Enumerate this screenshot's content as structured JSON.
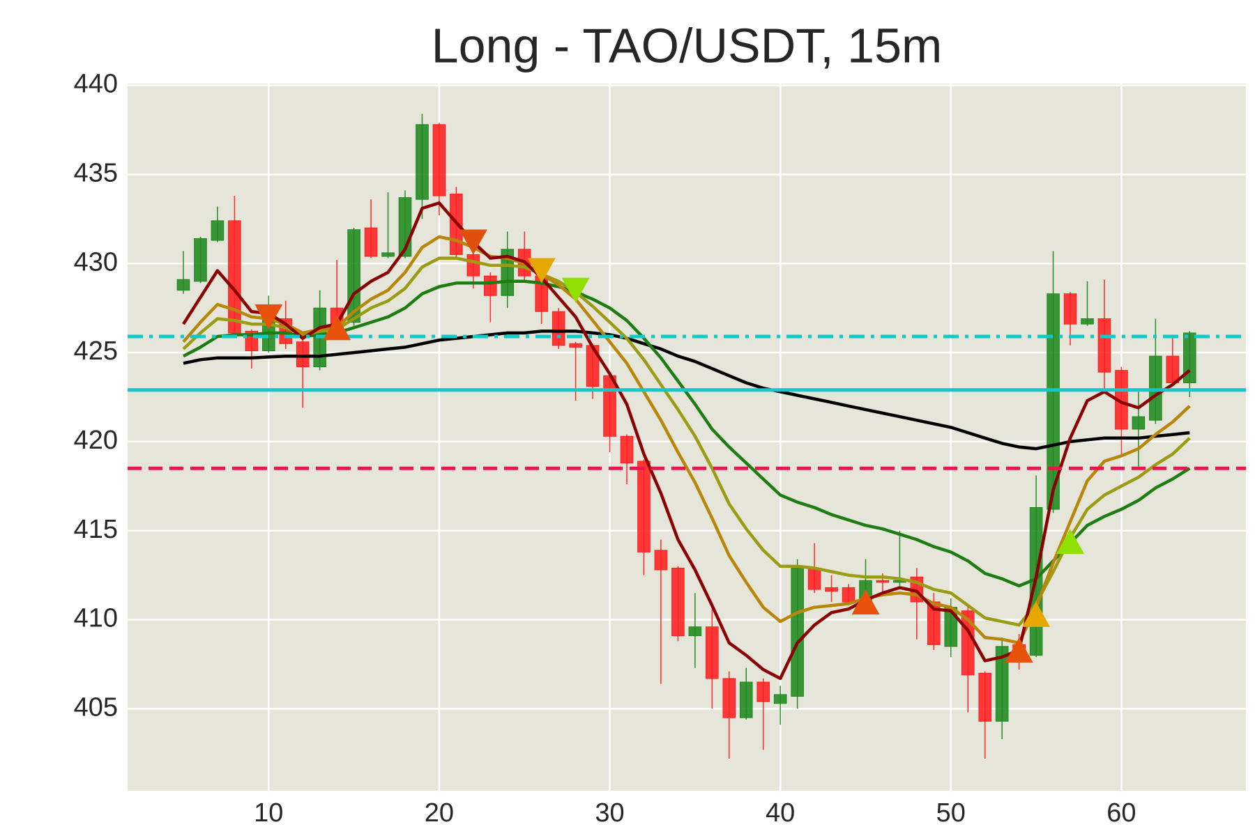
{
  "chart_data": {
    "type": "candlestick",
    "title": "Long - TAO/USDT, 15m",
    "x": [
      5,
      6,
      7,
      8,
      9,
      10,
      11,
      12,
      13,
      14,
      15,
      16,
      17,
      18,
      19,
      20,
      21,
      22,
      23,
      24,
      25,
      26,
      27,
      28,
      29,
      30,
      31,
      32,
      33,
      34,
      35,
      36,
      37,
      38,
      39,
      40,
      41,
      42,
      43,
      44,
      45,
      46,
      47,
      48,
      49,
      50,
      51,
      52,
      53,
      54,
      55,
      56,
      57,
      58,
      59,
      60,
      61,
      62,
      63,
      64
    ],
    "open": [
      428.5,
      429.0,
      431.3,
      432.4,
      426.2,
      425.1,
      426.9,
      425.6,
      424.2,
      427.5,
      426.7,
      432.0,
      430.4,
      430.4,
      433.6,
      437.8,
      433.9,
      430.5,
      429.3,
      428.2,
      430.8,
      429.3,
      427.3,
      425.5,
      425.4,
      423.7,
      420.3,
      418.9,
      413.9,
      412.9,
      409.1,
      409.6,
      406.7,
      404.5,
      406.5,
      405.3,
      405.7,
      412.9,
      411.8,
      411.8,
      411.0,
      412.2,
      412.1,
      412.4,
      411.0,
      408.5,
      410.5,
      407.0,
      404.3,
      408.6,
      408.0,
      416.2,
      428.3,
      426.6,
      426.9,
      424.0,
      420.7,
      421.2,
      424.8,
      423.3
    ],
    "high": [
      430.7,
      431.5,
      433.2,
      433.8,
      426.3,
      428.2,
      427.9,
      426.0,
      428.5,
      430.2,
      432.0,
      433.6,
      434.0,
      434.1,
      438.4,
      437.9,
      434.3,
      430.8,
      429.5,
      431.8,
      431.8,
      429.5,
      427.5,
      425.6,
      425.5,
      423.9,
      420.4,
      419.0,
      414.5,
      413.0,
      411.5,
      410.6,
      407.1,
      407.3,
      406.7,
      406.3,
      413.4,
      414.3,
      412.5,
      412.0,
      413.4,
      412.6,
      415.0,
      412.9,
      411.5,
      411.2,
      410.8,
      407.1,
      409.0,
      409.2,
      418.1,
      430.7,
      428.4,
      429.0,
      429.1,
      424.2,
      422.8,
      426.9,
      425.8,
      426.2
    ],
    "low": [
      428.3,
      428.9,
      431.2,
      426.0,
      424.1,
      425.0,
      425.2,
      421.9,
      424.0,
      426.2,
      426.5,
      430.3,
      430.3,
      430.3,
      432.5,
      432.7,
      430.3,
      428.6,
      426.7,
      427.5,
      429.0,
      426.6,
      425.2,
      422.3,
      422.4,
      419.4,
      417.6,
      412.5,
      406.4,
      408.8,
      407.3,
      405.0,
      402.2,
      404.4,
      402.7,
      404.1,
      405.0,
      411.5,
      411.0,
      410.8,
      410.8,
      411.6,
      411.9,
      408.9,
      408.3,
      407.9,
      404.8,
      402.2,
      403.3,
      407.2,
      407.9,
      416.0,
      425.4,
      426.5,
      422.8,
      419.2,
      418.6,
      421.0,
      423.1,
      422.5
    ],
    "close": [
      429.1,
      431.4,
      432.4,
      426.1,
      425.1,
      427.0,
      425.5,
      424.2,
      427.5,
      426.4,
      431.9,
      430.4,
      430.6,
      433.7,
      437.8,
      433.8,
      430.5,
      429.3,
      428.2,
      430.8,
      429.3,
      427.3,
      425.4,
      425.3,
      423.1,
      420.3,
      418.8,
      413.8,
      412.8,
      409.1,
      409.6,
      406.7,
      404.5,
      406.5,
      405.4,
      405.8,
      412.9,
      411.7,
      411.6,
      411.0,
      412.2,
      412.1,
      412.2,
      411.0,
      408.6,
      410.7,
      406.9,
      404.3,
      408.5,
      408.2,
      416.3,
      428.3,
      426.6,
      426.9,
      423.9,
      420.7,
      421.4,
      424.8,
      423.3,
      426.1
    ],
    "up_color": "#1f8a1f",
    "down_color": "#ff2020",
    "lines": [
      {
        "color": "#000000",
        "values": [
          424.4,
          424.6,
          424.7,
          424.7,
          424.7,
          424.75,
          424.8,
          424.8,
          424.8,
          424.9,
          425.0,
          425.1,
          425.2,
          425.3,
          425.5,
          425.7,
          425.8,
          425.9,
          426.0,
          426.1,
          426.1,
          426.2,
          426.2,
          426.2,
          426.1,
          426.0,
          425.8,
          425.5,
          425.2,
          424.8,
          424.5,
          424.1,
          423.7,
          423.3,
          423.0,
          422.8,
          422.6,
          422.4,
          422.2,
          422.0,
          421.8,
          421.6,
          421.4,
          421.2,
          421.0,
          420.8,
          420.5,
          420.2,
          419.9,
          419.7,
          419.6,
          419.8,
          420.0,
          420.1,
          420.2,
          420.2,
          420.2,
          420.3,
          420.4,
          420.5
        ]
      },
      {
        "color": "#1e7d12",
        "values": [
          424.8,
          425.3,
          425.9,
          426.0,
          426.0,
          426.1,
          426.1,
          425.9,
          426.0,
          426.1,
          426.4,
          426.7,
          427.0,
          427.5,
          428.3,
          428.7,
          428.9,
          428.9,
          428.9,
          429.0,
          429.0,
          428.9,
          428.7,
          428.4,
          428.0,
          427.5,
          426.8,
          425.8,
          424.7,
          423.4,
          422.1,
          420.7,
          419.7,
          418.8,
          417.9,
          417.0,
          416.6,
          416.3,
          415.9,
          415.6,
          415.3,
          415.1,
          414.8,
          414.5,
          414.1,
          413.8,
          413.3,
          412.6,
          412.3,
          411.9,
          412.3,
          413.3,
          414.3,
          415.3,
          415.8,
          416.2,
          416.7,
          417.4,
          417.9,
          418.5
        ]
      },
      {
        "color": "#9c9c14",
        "values": [
          425.2,
          426.1,
          426.9,
          426.8,
          426.6,
          426.6,
          426.4,
          426.0,
          426.2,
          426.3,
          426.9,
          427.5,
          427.9,
          428.6,
          429.8,
          430.3,
          430.3,
          430.1,
          429.9,
          429.9,
          429.8,
          429.4,
          429.0,
          428.4,
          427.6,
          426.7,
          425.8,
          424.6,
          423.2,
          421.8,
          420.3,
          418.5,
          416.5,
          415.1,
          413.9,
          413.0,
          413.0,
          412.9,
          412.7,
          412.5,
          412.4,
          412.4,
          412.3,
          412.1,
          411.7,
          411.5,
          410.8,
          410.1,
          409.9,
          409.7,
          410.9,
          412.7,
          414.6,
          416.2,
          417.0,
          417.5,
          418.0,
          418.7,
          419.3,
          420.2
        ]
      },
      {
        "color": "#b8860b",
        "values": [
          425.6,
          426.7,
          427.7,
          427.4,
          427.0,
          426.9,
          426.6,
          426.1,
          426.3,
          426.4,
          427.3,
          428.0,
          428.5,
          429.5,
          430.9,
          431.5,
          431.3,
          430.9,
          430.4,
          430.3,
          430.0,
          429.4,
          428.8,
          428.0,
          426.8,
          425.6,
          424.4,
          422.8,
          421.2,
          419.4,
          417.7,
          415.7,
          413.6,
          412.1,
          410.7,
          409.9,
          410.4,
          410.7,
          410.8,
          410.9,
          411.2,
          411.4,
          411.5,
          411.4,
          410.9,
          410.7,
          410.0,
          409.0,
          408.9,
          408.7,
          410.7,
          413.2,
          415.5,
          417.8,
          418.9,
          419.2,
          419.6,
          420.4,
          421.1,
          422.0
        ]
      },
      {
        "color": "#8b0000",
        "values": [
          426.6,
          428.1,
          429.6,
          428.5,
          427.3,
          427.2,
          426.6,
          425.8,
          426.4,
          426.6,
          428.3,
          429.0,
          429.5,
          430.8,
          433.1,
          433.4,
          432.3,
          431.2,
          430.3,
          430.4,
          430.1,
          429.2,
          428.1,
          427.0,
          425.3,
          423.8,
          422.1,
          419.3,
          417.1,
          414.5,
          412.8,
          410.8,
          408.7,
          408.0,
          407.2,
          406.7,
          408.7,
          409.7,
          410.4,
          410.6,
          411.1,
          411.5,
          411.8,
          411.6,
          410.6,
          410.5,
          409.4,
          407.7,
          407.9,
          408.3,
          412.4,
          417.3,
          420.2,
          422.3,
          422.8,
          422.2,
          421.9,
          422.6,
          423.2,
          424.0
        ]
      }
    ],
    "hlines": [
      {
        "value": 425.9,
        "color": "#14c8c8",
        "style": "dashdot"
      },
      {
        "value": 422.9,
        "color": "#14c8c8",
        "style": "solid"
      },
      {
        "value": 418.5,
        "color": "#e8174f",
        "style": "dashed"
      }
    ],
    "markers": [
      {
        "x": 10,
        "y": 427.0,
        "shape": "triangle-down",
        "color": "#e8520a"
      },
      {
        "x": 22,
        "y": 431.2,
        "shape": "triangle-down",
        "color": "#e0500a"
      },
      {
        "x": 26,
        "y": 429.6,
        "shape": "triangle-down",
        "color": "#e6a800"
      },
      {
        "x": 28,
        "y": 428.5,
        "shape": "triangle-down",
        "color": "#8fe000"
      },
      {
        "x": 14,
        "y": 426.4,
        "shape": "triangle-up",
        "color": "#e8520a"
      },
      {
        "x": 45,
        "y": 411.0,
        "shape": "triangle-up",
        "color": "#e8520a"
      },
      {
        "x": 54,
        "y": 408.3,
        "shape": "triangle-up",
        "color": "#e8520a"
      },
      {
        "x": 55,
        "y": 410.3,
        "shape": "triangle-up",
        "color": "#e6a800"
      },
      {
        "x": 57,
        "y": 414.4,
        "shape": "triangle-up",
        "color": "#8fe000"
      }
    ],
    "xlim": [
      1.73,
      67.3
    ],
    "ylim": [
      400.4,
      440.1
    ],
    "xticks": [
      10,
      20,
      30,
      40,
      50,
      60
    ],
    "yticks": [
      405,
      410,
      415,
      420,
      425,
      430,
      435,
      440
    ],
    "grid": true
  }
}
